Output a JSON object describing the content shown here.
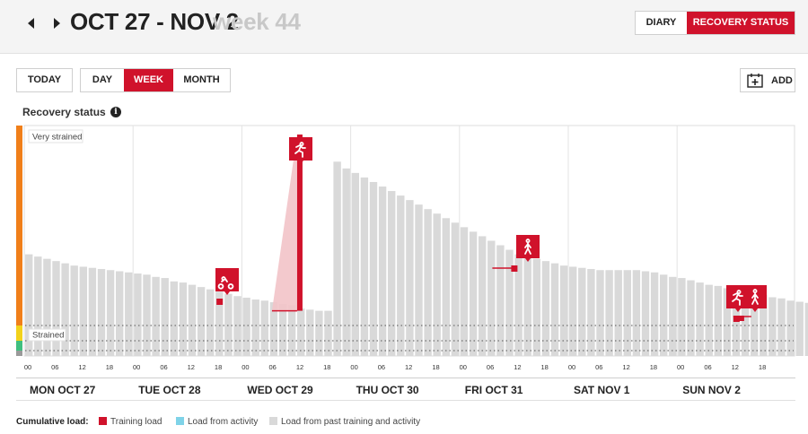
{
  "header": {
    "date_range": "OCT 27 - NOV 2",
    "week_label": "week 44",
    "view_toggle": [
      {
        "label": "DIARY",
        "active": false
      },
      {
        "label": "RECOVERY STATUS",
        "active": true
      }
    ]
  },
  "toolbar": {
    "today_label": "TODAY",
    "period_tabs": [
      {
        "label": "DAY",
        "active": false
      },
      {
        "label": "WEEK",
        "active": true
      },
      {
        "label": "MONTH",
        "active": false
      }
    ],
    "add_label": "ADD"
  },
  "section": {
    "title": "Recovery status"
  },
  "colors": {
    "accent": "#d0122b",
    "bar": "#d9d9d9",
    "activity": "#7fd3e8",
    "zone_very_strained": "#f07f1a",
    "zone_strained": "#f2d21b",
    "zone_balanced": "#3fbf7f",
    "zone_low": "#9a9a9a"
  },
  "chart_data": {
    "type": "bar",
    "title": "Recovery status",
    "zones": [
      "Very strained",
      "Strained"
    ],
    "ylim": [
      0,
      100
    ],
    "x_tick_labels": [
      "00",
      "06",
      "12",
      "18"
    ],
    "days": [
      "MON OCT 27",
      "TUE OCT 28",
      "WED OCT 29",
      "THU OCT 30",
      "FRI OCT 31",
      "SAT NOV 1",
      "SUN NOV 2"
    ],
    "interval_hours": 3,
    "series": [
      {
        "name": "Load from past training and activity",
        "values": [
          45,
          44,
          43,
          42,
          41,
          40,
          39.5,
          39,
          38.5,
          38,
          37.5,
          37,
          36.5,
          36,
          35,
          34.5,
          33,
          32.5,
          31.5,
          30.5,
          29.5,
          28.5,
          27.5,
          26.5,
          25.8,
          25,
          24.5,
          23.8,
          23,
          22.5,
          21,
          20.5,
          20,
          20,
          86,
          83,
          81,
          79,
          77,
          75,
          73,
          71,
          69,
          67,
          65,
          63,
          61,
          59,
          57,
          55,
          53,
          51,
          49,
          47,
          45,
          44,
          43,
          42,
          41,
          40,
          39.5,
          39,
          38.5,
          38,
          38,
          38,
          38,
          38,
          37.5,
          37,
          36,
          35,
          34.5,
          33.5,
          32.5,
          31.5,
          31,
          30,
          29,
          28,
          27.5,
          27,
          26,
          25.5,
          24.5,
          24,
          23.5,
          23,
          22.5,
          22,
          21.5,
          21,
          20.5,
          20,
          19.5,
          19,
          18.5,
          17.5,
          17,
          16.8,
          16.5,
          16,
          15.5,
          15.5,
          15,
          14.5,
          14,
          14
        ]
      },
      {
        "name": "Load from activity",
        "values": []
      },
      {
        "name": "Training load",
        "events": [
          {
            "day": "TUE OCT 28",
            "hour": 19,
            "value": 3,
            "sport": "cycling"
          },
          {
            "day": "WED OCT 29",
            "hour": 11,
            "value": 78,
            "sport": "running"
          },
          {
            "day": "FRI OCT 31",
            "hour": 12,
            "value": 2,
            "sport": "walking"
          },
          {
            "day": "SUN NOV 2",
            "hour": 13,
            "value": 3,
            "sport": "running"
          },
          {
            "day": "SUN NOV 2",
            "hour": 14,
            "value": 0.5,
            "sport": "walking"
          }
        ]
      }
    ],
    "legend": {
      "title": "Cumulative load:",
      "items": [
        "Training load",
        "Load from activity",
        "Load from past training and activity"
      ]
    }
  }
}
